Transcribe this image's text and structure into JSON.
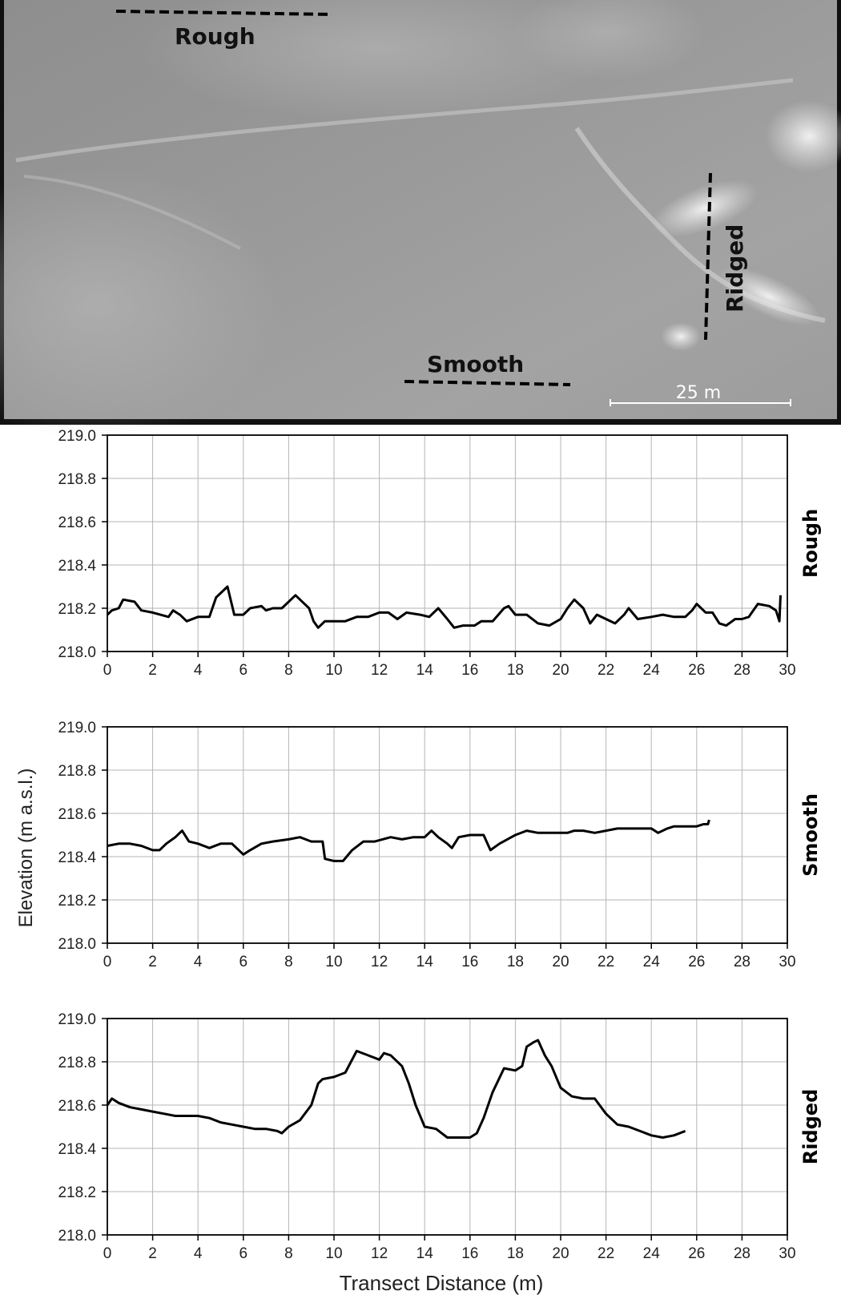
{
  "map": {
    "labels": {
      "rough": "Rough",
      "smooth": "Smooth",
      "ridged": "Ridged"
    },
    "scale_bar": "25 m"
  },
  "shared": {
    "ylabel": "Elevation (m a.s.l.)",
    "xlabel": "Transect Distance (m)"
  },
  "chart_data": [
    {
      "type": "line",
      "title": "",
      "side_label": "Rough",
      "xlabel": "",
      "ylabel": "",
      "xlim": [
        0,
        30
      ],
      "ylim": [
        218.0,
        219.0
      ],
      "xticks": [
        "0",
        "2",
        "4",
        "6",
        "8",
        "10",
        "12",
        "14",
        "16",
        "18",
        "20",
        "22",
        "24",
        "26",
        "28",
        "30"
      ],
      "yticks": [
        "218.0",
        "218.2",
        "218.4",
        "218.6",
        "218.8",
        "219.0"
      ],
      "grid": true,
      "series": [
        {
          "x": [
            0,
            0.2,
            0.5,
            0.7,
            1.2,
            1.5,
            2,
            2.7,
            2.9,
            3.2,
            3.5,
            4,
            4.5,
            4.8,
            5,
            5.3,
            5.6,
            6,
            6.3,
            6.8,
            7,
            7.3,
            7.7,
            8,
            8.3,
            8.6,
            8.9,
            9.1,
            9.3,
            9.6,
            10,
            10.5,
            11,
            11.5,
            12,
            12.4,
            12.8,
            13.2,
            13.8,
            14.2,
            14.6,
            15,
            15.3,
            15.7,
            16.2,
            16.5,
            17,
            17.5,
            17.7,
            18,
            18.5,
            19,
            19.5,
            20,
            20.3,
            20.6,
            21,
            21.3,
            21.6,
            22,
            22.4,
            22.8,
            23,
            23.4,
            24,
            24.5,
            25,
            25.5,
            25.8,
            26,
            26.4,
            26.7,
            27,
            27.3,
            27.7,
            28,
            28.3,
            28.7,
            29.2,
            29.5,
            29.65,
            29.7
          ],
          "y": [
            218.17,
            218.19,
            218.2,
            218.24,
            218.23,
            218.19,
            218.18,
            218.16,
            218.19,
            218.17,
            218.14,
            218.16,
            218.16,
            218.25,
            218.27,
            218.3,
            218.17,
            218.17,
            218.2,
            218.21,
            218.19,
            218.2,
            218.2,
            218.23,
            218.26,
            218.23,
            218.2,
            218.14,
            218.11,
            218.14,
            218.14,
            218.14,
            218.16,
            218.16,
            218.18,
            218.18,
            218.15,
            218.18,
            218.17,
            218.16,
            218.2,
            218.15,
            218.11,
            218.12,
            218.12,
            218.14,
            218.14,
            218.2,
            218.21,
            218.17,
            218.17,
            218.13,
            218.12,
            218.15,
            218.2,
            218.24,
            218.2,
            218.13,
            218.17,
            218.15,
            218.13,
            218.17,
            218.2,
            218.15,
            218.16,
            218.17,
            218.16,
            218.16,
            218.19,
            218.22,
            218.18,
            218.18,
            218.13,
            218.12,
            218.15,
            218.15,
            218.16,
            218.22,
            218.21,
            218.19,
            218.14,
            218.26
          ]
        }
      ]
    },
    {
      "type": "line",
      "title": "",
      "side_label": "Smooth",
      "xlabel": "",
      "ylabel": "Elevation (m a.s.l.)",
      "xlim": [
        0,
        30
      ],
      "ylim": [
        218.0,
        219.0
      ],
      "xticks": [
        "0",
        "2",
        "4",
        "6",
        "8",
        "10",
        "12",
        "14",
        "16",
        "18",
        "20",
        "22",
        "24",
        "26",
        "28",
        "30"
      ],
      "yticks": [
        "218.0",
        "218.2",
        "218.4",
        "218.6",
        "218.8",
        "219.0"
      ],
      "grid": true,
      "series": [
        {
          "x": [
            0,
            0.5,
            1,
            1.5,
            2,
            2.3,
            2.6,
            3,
            3.3,
            3.6,
            4,
            4.5,
            5,
            5.5,
            6,
            6.3,
            6.8,
            7.3,
            8,
            8.5,
            9,
            9.5,
            9.6,
            10,
            10.4,
            10.8,
            11.3,
            11.8,
            12.5,
            13,
            13.5,
            14,
            14.3,
            14.6,
            15,
            15.2,
            15.5,
            16,
            16.3,
            16.6,
            16.9,
            17.3,
            18,
            18.5,
            19,
            19.5,
            20,
            20.3,
            20.6,
            21,
            21.5,
            22,
            22.5,
            23,
            23.5,
            24,
            24.3,
            24.7,
            25,
            25.5,
            26,
            26.3,
            26.5,
            26.55
          ],
          "y": [
            218.45,
            218.46,
            218.46,
            218.45,
            218.43,
            218.43,
            218.46,
            218.49,
            218.52,
            218.47,
            218.46,
            218.44,
            218.46,
            218.46,
            218.41,
            218.43,
            218.46,
            218.47,
            218.48,
            218.49,
            218.47,
            218.47,
            218.39,
            218.38,
            218.38,
            218.43,
            218.47,
            218.47,
            218.49,
            218.48,
            218.49,
            218.49,
            218.52,
            218.49,
            218.46,
            218.44,
            218.49,
            218.5,
            218.5,
            218.5,
            218.43,
            218.46,
            218.5,
            218.52,
            218.51,
            218.51,
            218.51,
            218.51,
            218.52,
            218.52,
            218.51,
            218.52,
            218.53,
            218.53,
            218.53,
            218.53,
            218.51,
            218.53,
            218.54,
            218.54,
            218.54,
            218.55,
            218.55,
            218.57
          ]
        }
      ]
    },
    {
      "type": "line",
      "title": "",
      "side_label": "Ridged",
      "xlabel": "Transect Distance (m)",
      "ylabel": "",
      "xlim": [
        0,
        30
      ],
      "ylim": [
        218.0,
        219.0
      ],
      "xticks": [
        "0",
        "2",
        "4",
        "6",
        "8",
        "10",
        "12",
        "14",
        "16",
        "18",
        "20",
        "22",
        "24",
        "26",
        "28",
        "30"
      ],
      "yticks": [
        "218.0",
        "218.2",
        "218.4",
        "218.6",
        "218.8",
        "219.0"
      ],
      "grid": true,
      "series": [
        {
          "x": [
            0,
            0.2,
            0.5,
            1,
            1.5,
            2,
            2.5,
            3,
            3.5,
            4,
            4.5,
            5,
            5.5,
            6,
            6.5,
            7,
            7.5,
            7.7,
            8,
            8.5,
            9,
            9.3,
            9.5,
            10,
            10.5,
            11,
            11.5,
            12,
            12.2,
            12.5,
            13,
            13.3,
            13.6,
            14,
            14.5,
            15,
            15.5,
            16,
            16.3,
            16.6,
            17,
            17.5,
            18,
            18.3,
            18.5,
            18.8,
            19,
            19.3,
            19.6,
            20,
            20.5,
            21,
            21.5,
            22,
            22.5,
            23,
            23.5,
            24,
            24.5,
            25,
            25.5
          ],
          "y": [
            218.6,
            218.63,
            218.61,
            218.59,
            218.58,
            218.57,
            218.56,
            218.55,
            218.55,
            218.55,
            218.54,
            218.52,
            218.51,
            218.5,
            218.49,
            218.49,
            218.48,
            218.47,
            218.5,
            218.53,
            218.6,
            218.7,
            218.72,
            218.73,
            218.75,
            218.85,
            218.83,
            218.81,
            218.84,
            218.83,
            218.78,
            218.7,
            218.6,
            218.5,
            218.49,
            218.45,
            218.45,
            218.45,
            218.47,
            218.54,
            218.66,
            218.77,
            218.76,
            218.78,
            218.87,
            218.89,
            218.9,
            218.83,
            218.78,
            218.68,
            218.64,
            218.63,
            218.63,
            218.56,
            218.51,
            218.5,
            218.48,
            218.46,
            218.45,
            218.46,
            218.48
          ]
        }
      ]
    }
  ]
}
